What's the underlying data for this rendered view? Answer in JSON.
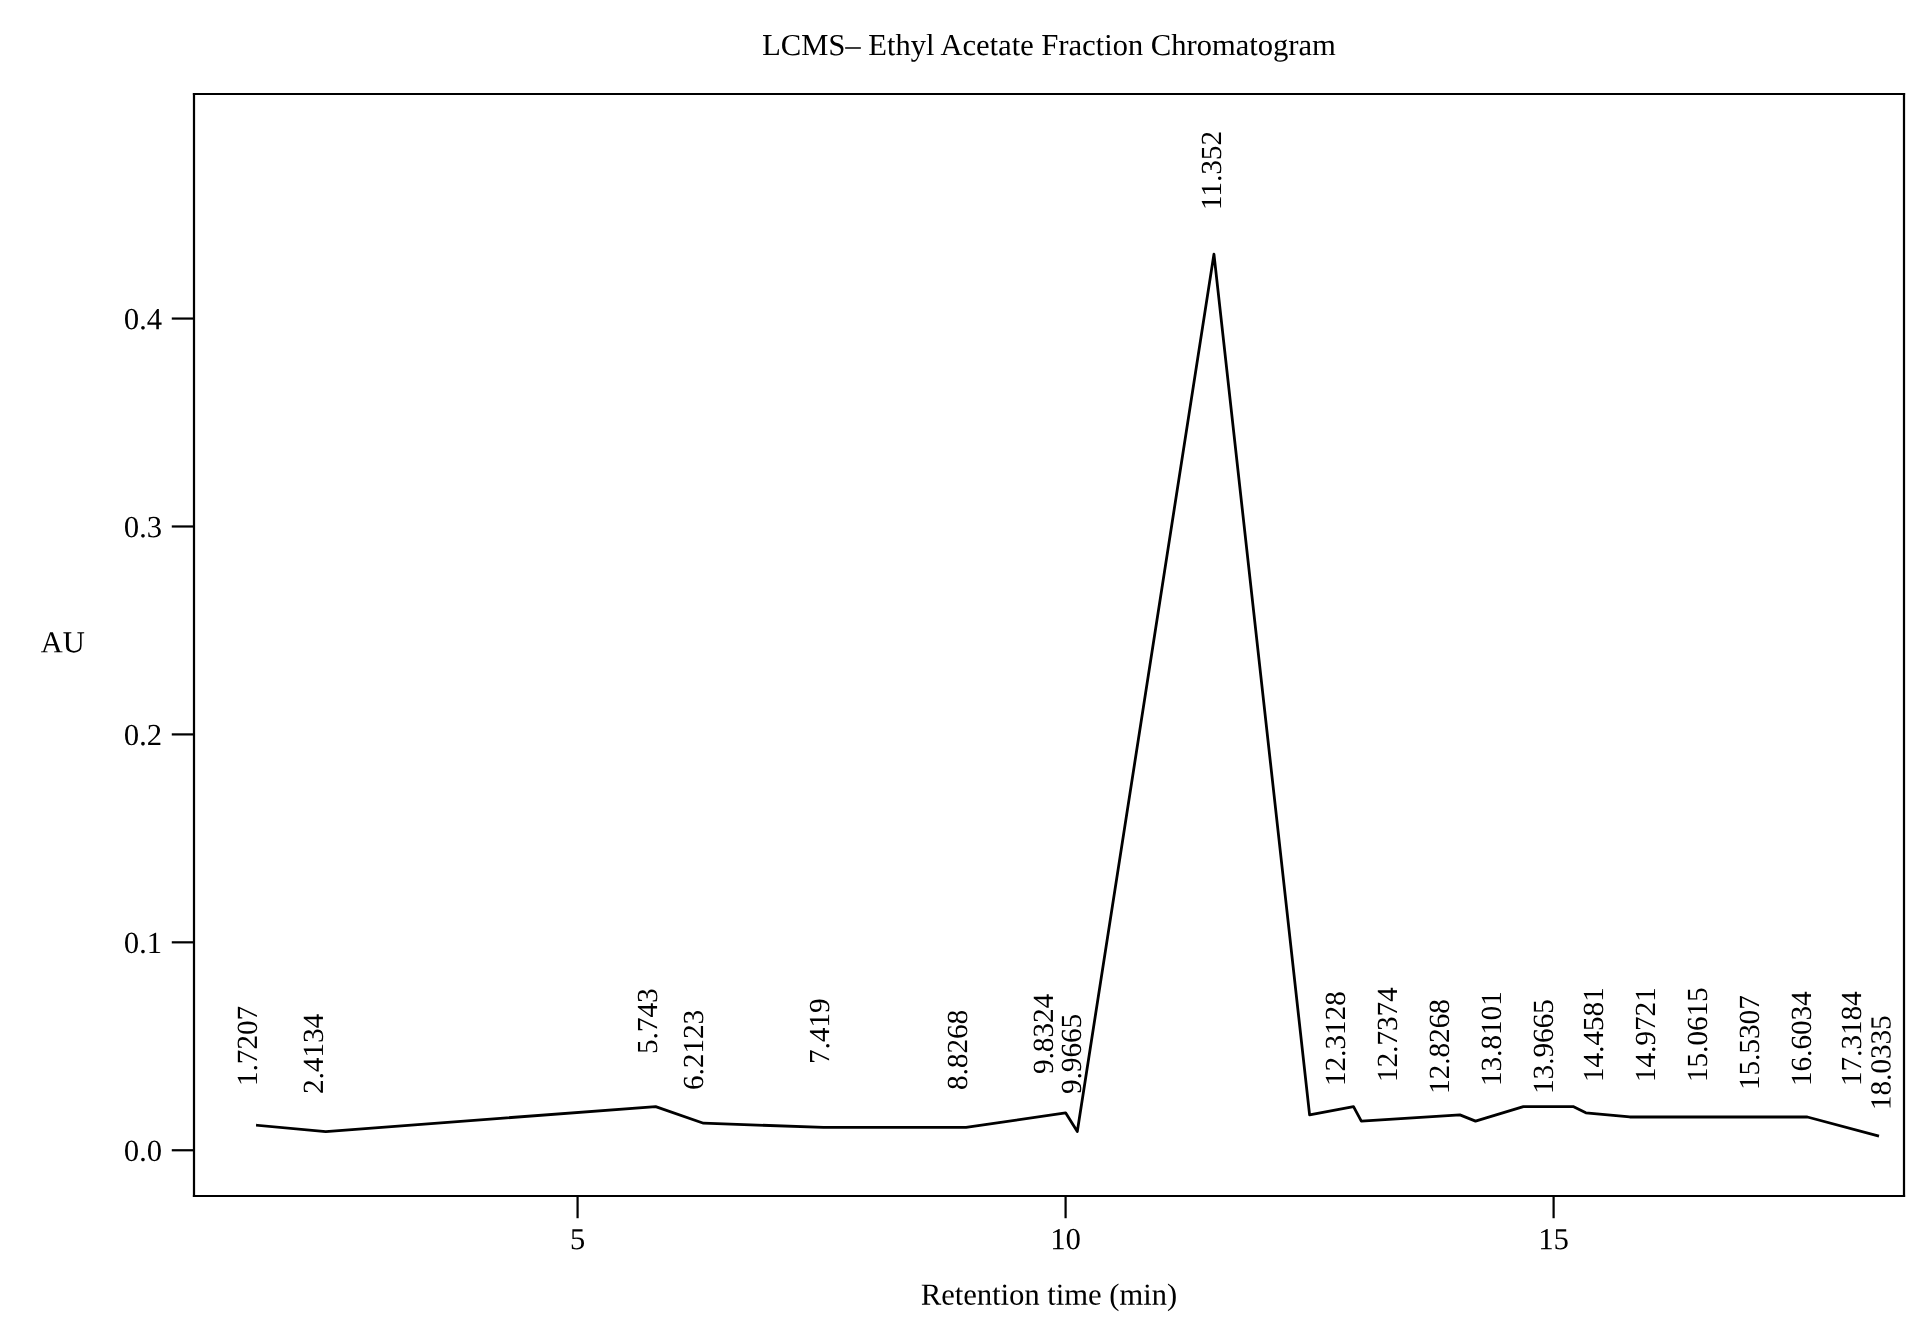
{
  "chart_data": {
    "type": "line",
    "title": "LCMS– Ethyl Acetate Fraction Chromatogram",
    "xlabel": "Retention time (min)",
    "ylabel": "AU",
    "x": [
      1.72,
      2.42,
      5.8,
      6.29,
      7.52,
      8.98,
      10.0,
      10.12,
      11.52,
      12.5,
      12.95,
      13.03,
      14.04,
      14.2,
      14.69,
      15.2,
      15.33,
      15.78,
      17.6,
      18.32
    ],
    "series": [
      {
        "color": "#000000",
        "values": [
          0.012,
          0.009,
          0.021,
          0.013,
          0.011,
          0.011,
          0.018,
          0.009,
          0.431,
          0.017,
          0.021,
          0.014,
          0.017,
          0.014,
          0.021,
          0.021,
          0.018,
          0.016,
          0.016,
          0.007
        ]
      }
    ],
    "xlim": [
      1.07,
      18.59
    ],
    "ylim": [
      -0.022,
      0.508
    ],
    "xticks": [
      5,
      10,
      15
    ],
    "yticks": [
      {
        "value": 0.0,
        "label": "0.0"
      },
      0.1,
      0.2,
      0.3,
      0.4
    ],
    "grid": false,
    "legend": false,
    "marker": "none",
    "line_style": "solid",
    "annotations": [
      "1.7207",
      "2.4134",
      "5.743",
      "6.2123",
      "7.419",
      "8.8268",
      "9.8324",
      "9.9665",
      "11.352",
      "12.3128",
      "12.7374",
      "12.8268",
      "13.8101",
      "13.9665",
      "14.4581",
      "14.9721",
      "15.0615",
      "15.5307",
      "16.6034",
      "17.3184",
      "18.0335"
    ]
  }
}
